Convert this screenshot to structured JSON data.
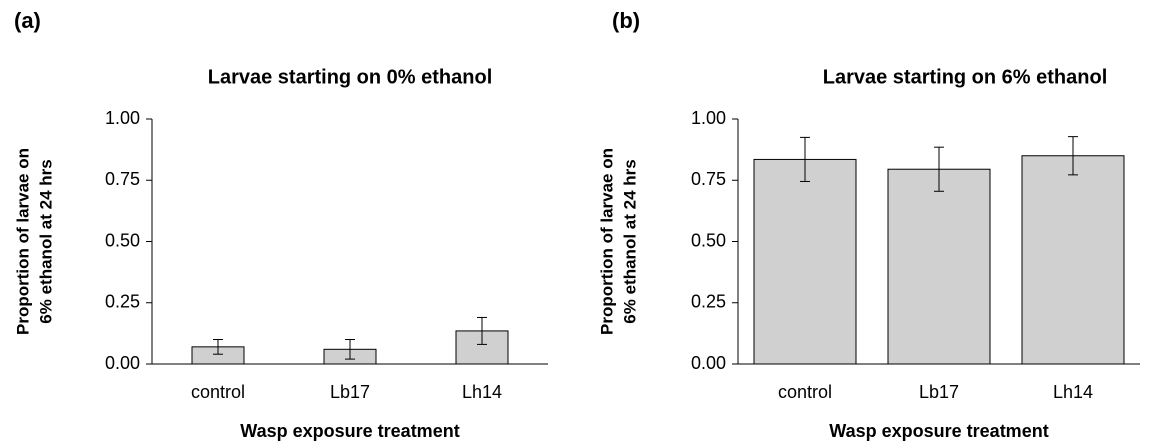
{
  "chart_data": [
    {
      "type": "bar",
      "panel_label": "(a)",
      "title": "Larvae starting on 0% ethanol",
      "ylabel": [
        "Proportion of larvae on",
        "6% ethanol at 24 hrs"
      ],
      "xlabel": "Wasp exposure treatment",
      "categories": [
        "control",
        "Lb17",
        "Lh14"
      ],
      "values": [
        0.07,
        0.06,
        0.135
      ],
      "errors": [
        0.03,
        0.04,
        0.055
      ],
      "color": "#d0d0d0",
      "ylim": [
        0,
        1
      ],
      "yticks": [
        {
          "value": 0,
          "label": "0.00"
        },
        {
          "value": 0.25,
          "label": "0.25"
        },
        {
          "value": 0.5,
          "label": "0.50"
        },
        {
          "value": 0.75,
          "label": "0.75"
        },
        {
          "value": 1,
          "label": "1.00"
        }
      ]
    },
    {
      "type": "bar",
      "panel_label": "(b)",
      "title": "Larvae starting on 6% ethanol",
      "ylabel": [
        "Proportion of larvae on",
        "6% ethanol at 24 hrs"
      ],
      "xlabel": "Wasp exposure treatment",
      "categories": [
        "control",
        "Lb17",
        "Lh14"
      ],
      "values": [
        0.835,
        0.795,
        0.85
      ],
      "errors": [
        0.09,
        0.09,
        0.078
      ],
      "color": "#d0d0d0",
      "ylim": [
        0,
        1
      ],
      "yticks": [
        {
          "value": 0,
          "label": "0.00"
        },
        {
          "value": 0.25,
          "label": "0.25"
        },
        {
          "value": 0.5,
          "label": "0.50"
        },
        {
          "value": 0.75,
          "label": "0.75"
        },
        {
          "value": 1,
          "label": "1.00"
        }
      ]
    }
  ]
}
